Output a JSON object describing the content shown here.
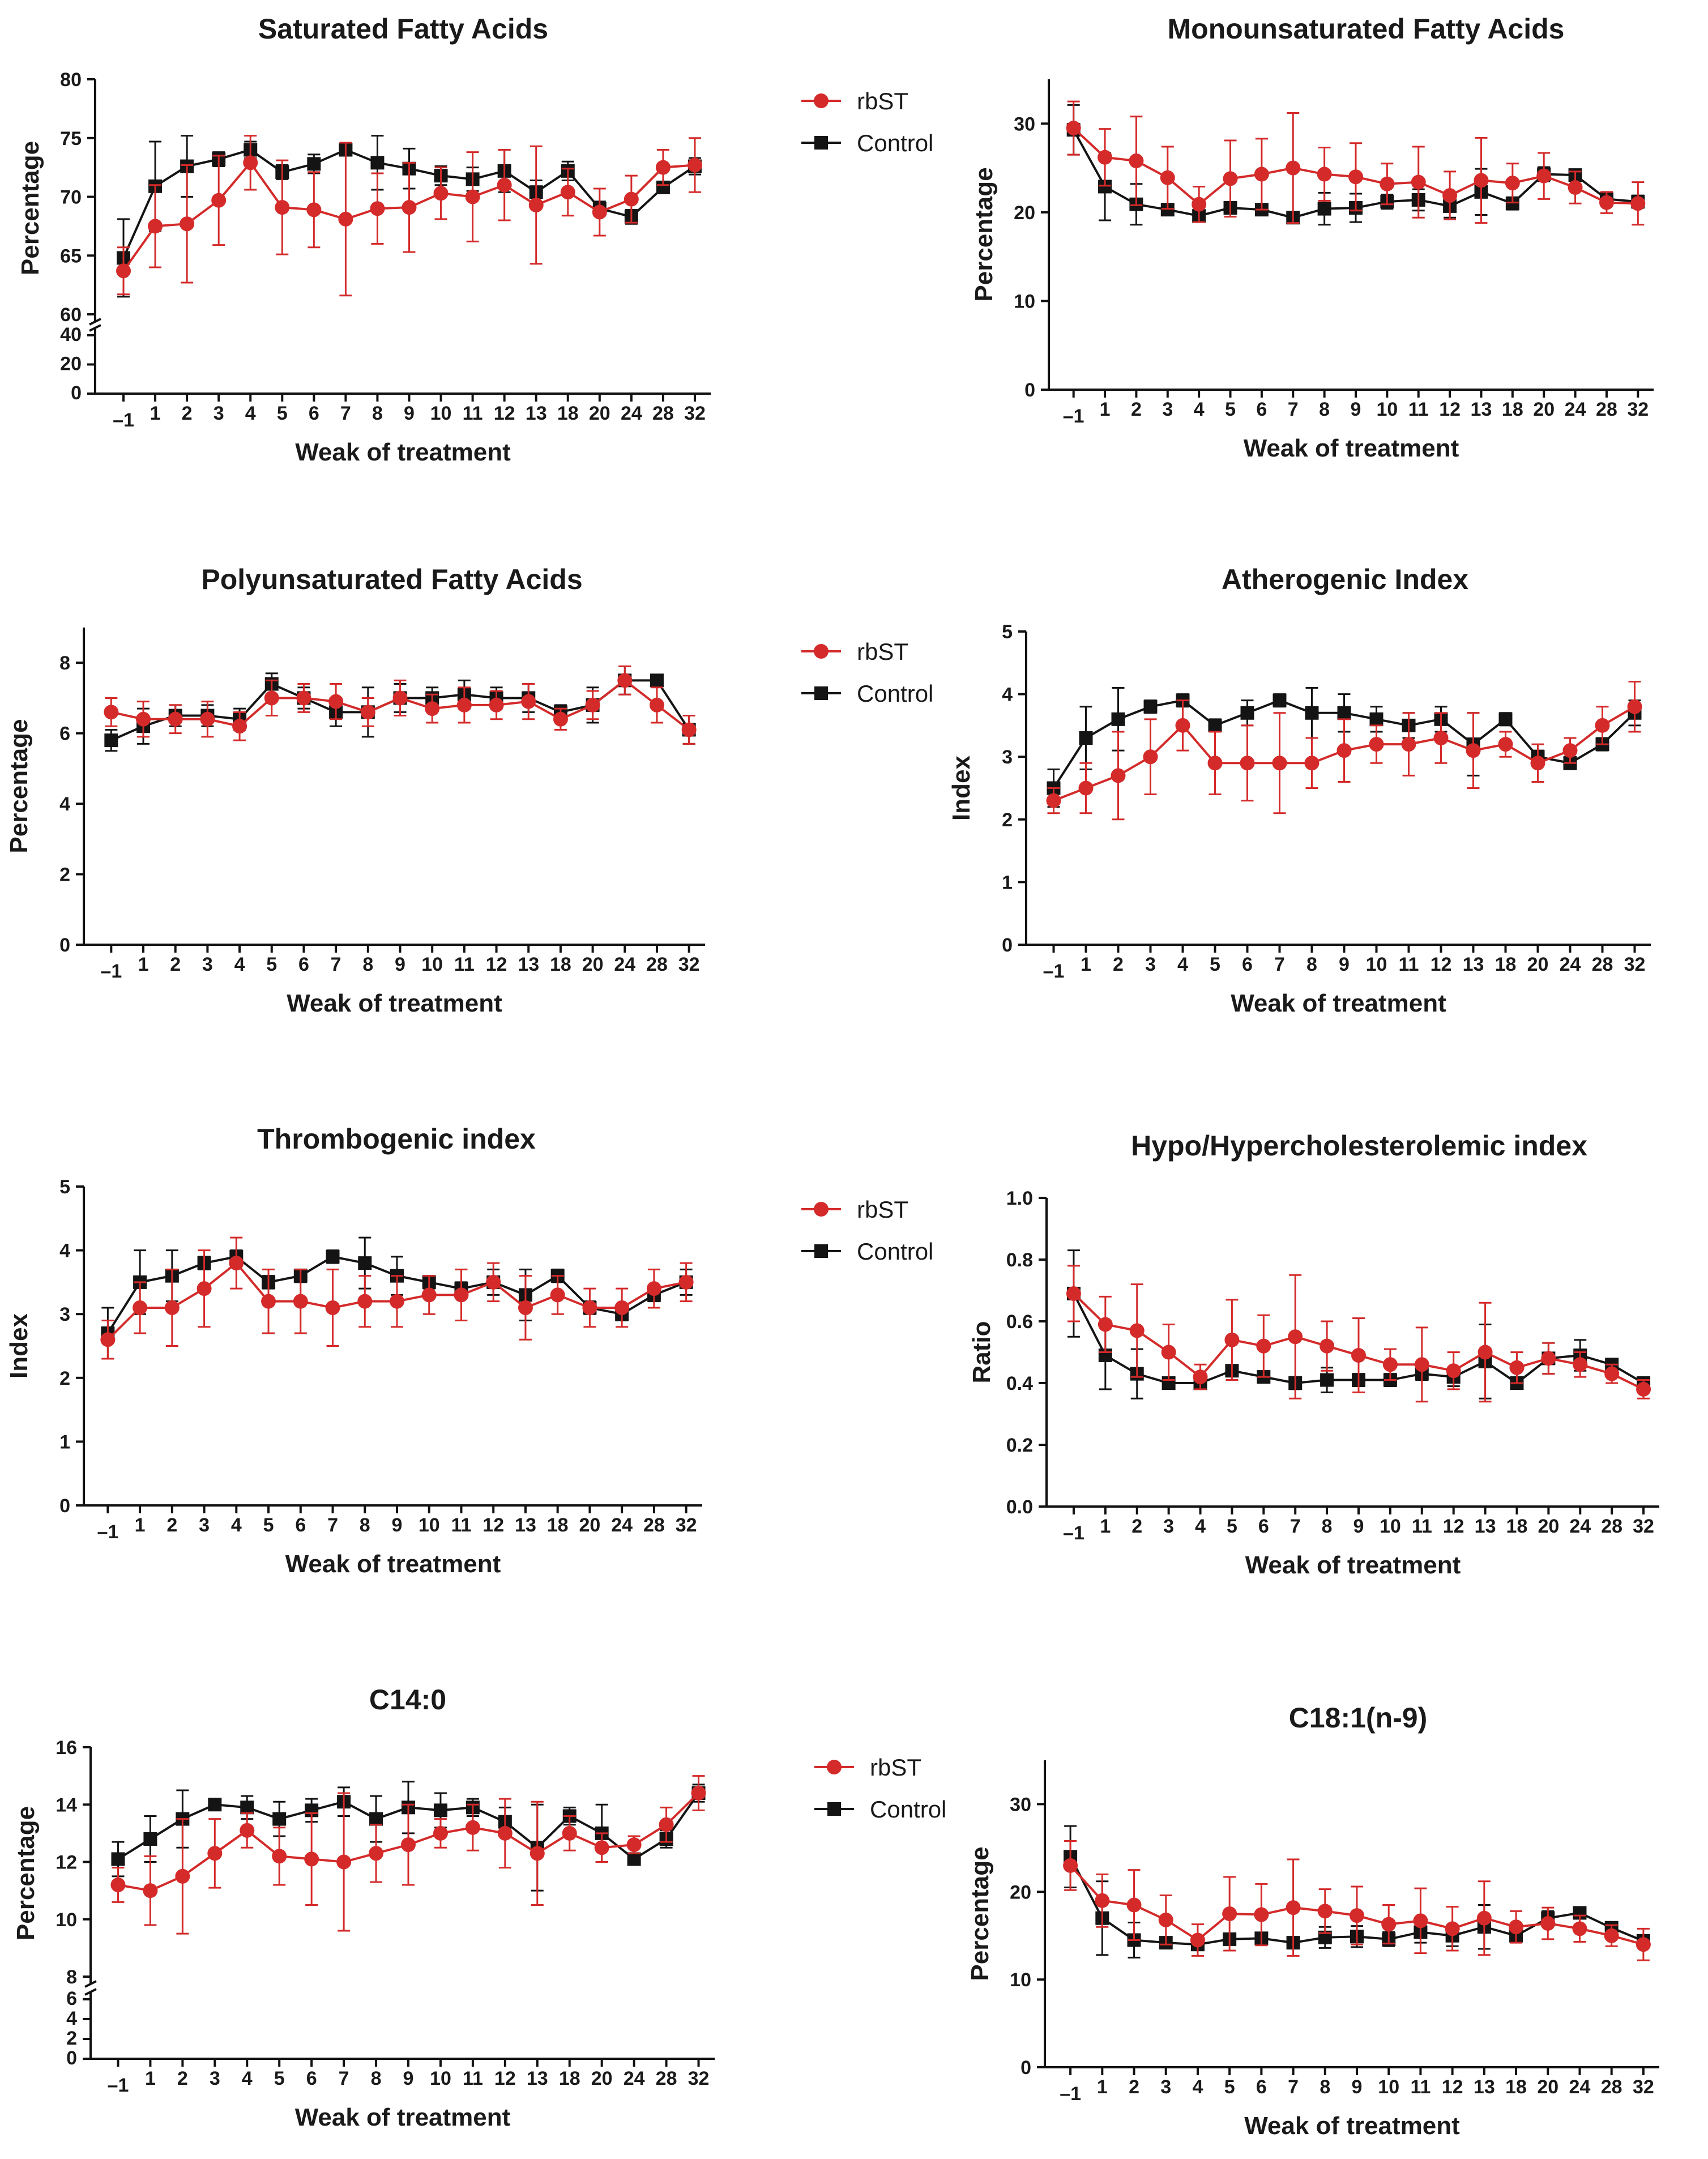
{
  "colors": {
    "rbST": "#d42a2a",
    "control": "#141414"
  },
  "chart_data": [
    {
      "id": "sfa",
      "type": "line",
      "title": "Saturated Fatty Acids",
      "xlabel": "Weak of treatment",
      "ylabel": "Percentage",
      "categories": [
        "–1",
        "1",
        "2",
        "3",
        "4",
        "5",
        "6",
        "7",
        "8",
        "9",
        "10",
        "11",
        "12",
        "13",
        "18",
        "20",
        "24",
        "28",
        "32"
      ],
      "broken_axis": true,
      "ylim_upper": [
        60,
        80
      ],
      "upper_ticks": [
        "60",
        "65",
        "70",
        "75",
        "80"
      ],
      "lower_ticks": [
        "0",
        "20",
        "40"
      ],
      "legend": [
        "rbST",
        "Control"
      ],
      "series": [
        {
          "name": "rbST",
          "values": [
            63.7,
            67.5,
            67.7,
            69.7,
            72.9,
            69.1,
            68.9,
            68.1,
            69.0,
            69.1,
            70.3,
            70.0,
            71.0,
            69.3,
            70.4,
            68.7,
            69.8,
            72.5,
            72.7
          ],
          "errors": [
            2.0,
            3.5,
            5.0,
            3.8,
            2.3,
            4.0,
            3.2,
            6.5,
            3.0,
            3.8,
            2.2,
            3.8,
            3.0,
            5.0,
            2.0,
            2.0,
            2.0,
            1.5,
            2.3
          ]
        },
        {
          "name": "Control",
          "values": [
            64.8,
            70.9,
            72.6,
            73.2,
            74.0,
            72.1,
            72.8,
            74.0,
            72.9,
            72.4,
            71.8,
            71.5,
            72.2,
            70.4,
            72.2,
            69.0,
            68.3,
            70.8,
            72.6
          ],
          "errors": [
            3.3,
            3.8,
            2.6,
            0.6,
            0.7,
            0.6,
            0.8,
            0.5,
            2.3,
            1.7,
            0.8,
            1.0,
            1.8,
            1.0,
            0.8,
            0.6,
            0.6,
            0.4,
            0.7
          ]
        }
      ]
    },
    {
      "id": "mufa",
      "type": "line",
      "title": "Monounsaturated Fatty Acids",
      "xlabel": "Weak of treatment",
      "ylabel": "Percentage",
      "categories": [
        "–1",
        "1",
        "2",
        "3",
        "4",
        "5",
        "6",
        "7",
        "8",
        "9",
        "10",
        "11",
        "12",
        "13",
        "18",
        "20",
        "24",
        "28",
        "32"
      ],
      "ylim": [
        0,
        35
      ],
      "yticks": [
        0,
        10,
        20,
        30
      ],
      "ytick_labels": [
        "0",
        "10",
        "20",
        "30"
      ],
      "series": [
        {
          "name": "rbST",
          "values": [
            29.5,
            26.2,
            25.8,
            23.9,
            20.9,
            23.8,
            24.3,
            25.0,
            24.3,
            24.0,
            23.2,
            23.4,
            21.9,
            23.6,
            23.3,
            24.1,
            22.8,
            21.1,
            21.0
          ],
          "errors": [
            3.0,
            3.2,
            5.0,
            3.5,
            2.0,
            4.3,
            4.0,
            6.2,
            3.0,
            3.8,
            2.3,
            4.0,
            2.7,
            4.8,
            2.2,
            2.6,
            1.8,
            1.2,
            2.4
          ]
        },
        {
          "name": "Control",
          "values": [
            29.3,
            22.9,
            20.9,
            20.3,
            19.6,
            20.5,
            20.3,
            19.4,
            20.4,
            20.5,
            21.2,
            21.4,
            20.7,
            22.3,
            21.0,
            24.3,
            24.2,
            21.5,
            21.2
          ],
          "errors": [
            2.8,
            3.8,
            2.3,
            0.5,
            0.6,
            0.5,
            0.6,
            0.4,
            1.8,
            1.6,
            0.8,
            1.2,
            1.3,
            2.6,
            0.7,
            0.8,
            0.6,
            0.6,
            0.7
          ]
        }
      ]
    },
    {
      "id": "pufa",
      "type": "line",
      "title": "Polyunsaturated Fatty Acids",
      "xlabel": "Weak of treatment",
      "ylabel": "Percentage",
      "categories": [
        "–1",
        "1",
        "2",
        "3",
        "4",
        "5",
        "6",
        "7",
        "8",
        "9",
        "10",
        "11",
        "12",
        "13",
        "18",
        "20",
        "24",
        "28",
        "32"
      ],
      "ylim": [
        0,
        9
      ],
      "yticks": [
        0,
        2,
        4,
        6,
        8
      ],
      "ytick_labels": [
        "0",
        "2",
        "4",
        "6",
        "8"
      ],
      "legend": [
        "rbST",
        "Control"
      ],
      "series": [
        {
          "name": "rbST",
          "values": [
            6.6,
            6.4,
            6.4,
            6.4,
            6.2,
            7.0,
            7.0,
            6.9,
            6.6,
            7.0,
            6.7,
            6.8,
            6.8,
            6.9,
            6.4,
            6.8,
            7.5,
            6.8,
            6.1
          ],
          "errors": [
            0.4,
            0.5,
            0.4,
            0.5,
            0.4,
            0.5,
            0.4,
            0.5,
            0.4,
            0.5,
            0.4,
            0.5,
            0.4,
            0.5,
            0.3,
            0.4,
            0.4,
            0.5,
            0.4
          ]
        },
        {
          "name": "Control",
          "values": [
            5.8,
            6.2,
            6.5,
            6.5,
            6.4,
            7.4,
            7.0,
            6.6,
            6.6,
            7.0,
            7.0,
            7.1,
            7.0,
            7.0,
            6.6,
            6.8,
            7.5,
            7.5,
            6.1
          ],
          "errors": [
            0.3,
            0.5,
            0.3,
            0.3,
            0.3,
            0.3,
            0.3,
            0.4,
            0.7,
            0.4,
            0.3,
            0.4,
            0.3,
            0.4,
            0.2,
            0.5,
            0.4,
            0.1,
            0.4
          ]
        }
      ]
    },
    {
      "id": "ai",
      "type": "line",
      "title": "Atherogenic Index",
      "xlabel": "Weak of treatment",
      "ylabel": "Index",
      "categories": [
        "–1",
        "1",
        "2",
        "3",
        "4",
        "5",
        "6",
        "7",
        "8",
        "9",
        "10",
        "11",
        "12",
        "13",
        "18",
        "20",
        "24",
        "28",
        "32"
      ],
      "ylim": [
        0,
        5
      ],
      "yticks": [
        0,
        1,
        2,
        3,
        4,
        5
      ],
      "ytick_labels": [
        "0",
        "1",
        "2",
        "3",
        "4",
        "5"
      ],
      "series": [
        {
          "name": "rbST",
          "values": [
            2.3,
            2.5,
            2.7,
            3.0,
            3.5,
            2.9,
            2.9,
            2.9,
            2.9,
            3.1,
            3.2,
            3.2,
            3.3,
            3.1,
            3.2,
            2.9,
            3.1,
            3.5,
            3.8
          ],
          "errors": [
            0.2,
            0.4,
            0.7,
            0.6,
            0.4,
            0.5,
            0.6,
            0.8,
            0.4,
            0.5,
            0.3,
            0.5,
            0.4,
            0.6,
            0.2,
            0.3,
            0.2,
            0.3,
            0.4
          ]
        },
        {
          "name": "Control",
          "values": [
            2.5,
            3.3,
            3.6,
            3.8,
            3.9,
            3.5,
            3.7,
            3.9,
            3.7,
            3.7,
            3.6,
            3.5,
            3.6,
            3.2,
            3.6,
            3.0,
            2.9,
            3.2,
            3.7
          ],
          "errors": [
            0.3,
            0.5,
            0.5,
            0.1,
            0.1,
            0.1,
            0.2,
            0.1,
            0.4,
            0.3,
            0.2,
            0.2,
            0.2,
            0.5,
            0.1,
            0.1,
            0.1,
            0.1,
            0.2
          ]
        }
      ]
    },
    {
      "id": "ti",
      "type": "line",
      "title": "Thrombogenic index",
      "xlabel": "Weak of treatment",
      "ylabel": "Index",
      "categories": [
        "–1",
        "1",
        "2",
        "3",
        "4",
        "5",
        "6",
        "7",
        "8",
        "9",
        "10",
        "11",
        "12",
        "13",
        "18",
        "20",
        "24",
        "28",
        "32"
      ],
      "ylim": [
        0,
        5
      ],
      "yticks": [
        0,
        1,
        2,
        3,
        4,
        5
      ],
      "ytick_labels": [
        "0",
        "1",
        "2",
        "3",
        "4",
        "5"
      ],
      "legend": [
        "rbST",
        "Control"
      ],
      "series": [
        {
          "name": "rbST",
          "values": [
            2.6,
            3.1,
            3.1,
            3.4,
            3.8,
            3.2,
            3.2,
            3.1,
            3.2,
            3.2,
            3.3,
            3.3,
            3.5,
            3.1,
            3.3,
            3.1,
            3.1,
            3.4,
            3.5
          ],
          "errors": [
            0.3,
            0.4,
            0.6,
            0.6,
            0.4,
            0.5,
            0.5,
            0.6,
            0.4,
            0.4,
            0.3,
            0.4,
            0.3,
            0.5,
            0.3,
            0.3,
            0.3,
            0.3,
            0.3
          ]
        },
        {
          "name": "Control",
          "values": [
            2.7,
            3.5,
            3.6,
            3.8,
            3.9,
            3.5,
            3.6,
            3.9,
            3.8,
            3.6,
            3.5,
            3.4,
            3.5,
            3.3,
            3.6,
            3.1,
            3.0,
            3.3,
            3.5
          ],
          "errors": [
            0.4,
            0.5,
            0.4,
            0.1,
            0.1,
            0.1,
            0.1,
            0.1,
            0.4,
            0.3,
            0.1,
            0.1,
            0.2,
            0.4,
            0.1,
            0.1,
            0.1,
            0.1,
            0.2
          ]
        }
      ]
    },
    {
      "id": "hh",
      "type": "line",
      "title": "Hypo/Hypercholesterolemic index",
      "xlabel": "Weak of treatment",
      "ylabel": "Ratio",
      "categories": [
        "–1",
        "1",
        "2",
        "3",
        "4",
        "5",
        "6",
        "7",
        "8",
        "9",
        "10",
        "11",
        "12",
        "13",
        "18",
        "20",
        "24",
        "28",
        "32"
      ],
      "ylim": [
        0,
        1.0
      ],
      "yticks": [
        0,
        0.2,
        0.4,
        0.6,
        0.8,
        1.0
      ],
      "ytick_labels": [
        "0.0",
        "0.2",
        "0.4",
        "0.6",
        "0.8",
        "1.0"
      ],
      "series": [
        {
          "name": "rbST",
          "values": [
            0.69,
            0.59,
            0.57,
            0.5,
            0.42,
            0.54,
            0.52,
            0.55,
            0.52,
            0.49,
            0.46,
            0.46,
            0.44,
            0.5,
            0.45,
            0.48,
            0.46,
            0.43,
            0.38
          ],
          "errors": [
            0.09,
            0.09,
            0.15,
            0.09,
            0.04,
            0.13,
            0.1,
            0.2,
            0.08,
            0.12,
            0.05,
            0.12,
            0.06,
            0.16,
            0.05,
            0.05,
            0.04,
            0.03,
            0.03
          ]
        },
        {
          "name": "Control",
          "values": [
            0.69,
            0.49,
            0.43,
            0.4,
            0.4,
            0.44,
            0.42,
            0.4,
            0.41,
            0.41,
            0.41,
            0.43,
            0.42,
            0.47,
            0.4,
            0.48,
            0.49,
            0.46,
            0.4
          ],
          "errors": [
            0.14,
            0.11,
            0.08,
            0.01,
            0.01,
            0.01,
            0.01,
            0.02,
            0.04,
            0.02,
            0.02,
            0.02,
            0.03,
            0.12,
            0.01,
            0.05,
            0.05,
            0.01,
            0.01
          ]
        }
      ]
    },
    {
      "id": "c14",
      "type": "line",
      "title": "C14:0",
      "xlabel": "Weak of treatment",
      "ylabel": "Percentage",
      "categories": [
        "–1",
        "1",
        "2",
        "3",
        "4",
        "5",
        "6",
        "7",
        "8",
        "9",
        "10",
        "11",
        "12",
        "13",
        "18",
        "20",
        "24",
        "28",
        "32"
      ],
      "broken_axis": true,
      "ylim_upper": [
        8,
        16
      ],
      "upper_ticks": [
        "8",
        "10",
        "12",
        "14",
        "16"
      ],
      "lower_ticks": [
        "0",
        "2",
        "4",
        "6"
      ],
      "legend": [
        "rbST",
        "Control"
      ],
      "series": [
        {
          "name": "rbST",
          "values": [
            11.2,
            11.0,
            11.5,
            12.3,
            13.1,
            12.2,
            12.1,
            12.0,
            12.3,
            12.6,
            13.0,
            13.2,
            13.0,
            12.3,
            13.0,
            12.5,
            12.6,
            13.3,
            14.4
          ],
          "errors": [
            0.6,
            1.2,
            2.0,
            1.2,
            0.6,
            1.0,
            1.6,
            2.4,
            1.0,
            1.4,
            0.5,
            0.8,
            1.2,
            1.8,
            0.6,
            0.5,
            0.3,
            0.6,
            0.6
          ]
        },
        {
          "name": "Control",
          "values": [
            12.1,
            12.8,
            13.5,
            14.0,
            13.9,
            13.5,
            13.8,
            14.1,
            13.5,
            13.9,
            13.8,
            13.9,
            13.4,
            12.5,
            13.6,
            13.0,
            12.1,
            12.8,
            14.4
          ],
          "errors": [
            0.6,
            0.8,
            1.0,
            0.2,
            0.4,
            0.6,
            0.4,
            0.5,
            0.8,
            0.9,
            0.6,
            0.3,
            0.5,
            1.5,
            0.3,
            1.0,
            0.2,
            0.3,
            0.3
          ]
        }
      ]
    },
    {
      "id": "c181",
      "type": "line",
      "title": "C18:1(n-9)",
      "xlabel": "Weak of treatment",
      "ylabel": "Percentage",
      "categories": [
        "–1",
        "1",
        "2",
        "3",
        "4",
        "5",
        "6",
        "7",
        "8",
        "9",
        "10",
        "11",
        "12",
        "13",
        "18",
        "20",
        "24",
        "28",
        "32"
      ],
      "ylim": [
        0,
        35
      ],
      "yticks": [
        0,
        10,
        20,
        30
      ],
      "ytick_labels": [
        "0",
        "10",
        "20",
        "30"
      ],
      "series": [
        {
          "name": "rbST",
          "values": [
            23.0,
            19.0,
            18.5,
            16.8,
            14.5,
            17.5,
            17.4,
            18.2,
            17.8,
            17.3,
            16.3,
            16.7,
            15.8,
            17.0,
            16.0,
            16.4,
            15.8,
            15.0,
            14.0
          ],
          "errors": [
            2.8,
            3.0,
            4.0,
            2.8,
            1.8,
            4.2,
            3.5,
            5.5,
            2.5,
            3.3,
            2.2,
            3.7,
            2.5,
            4.2,
            1.8,
            1.8,
            1.5,
            1.2,
            1.8
          ]
        },
        {
          "name": "Control",
          "values": [
            24.0,
            17.0,
            14.5,
            14.2,
            14.0,
            14.6,
            14.7,
            14.2,
            14.8,
            14.9,
            14.6,
            15.4,
            15.0,
            16.0,
            15.0,
            17.0,
            17.6,
            15.9,
            14.4
          ],
          "errors": [
            3.5,
            4.2,
            2.0,
            0.6,
            0.5,
            0.5,
            0.6,
            0.6,
            1.2,
            1.2,
            0.8,
            1.2,
            1.2,
            2.5,
            0.6,
            0.8,
            0.6,
            0.6,
            0.6
          ]
        }
      ]
    }
  ]
}
